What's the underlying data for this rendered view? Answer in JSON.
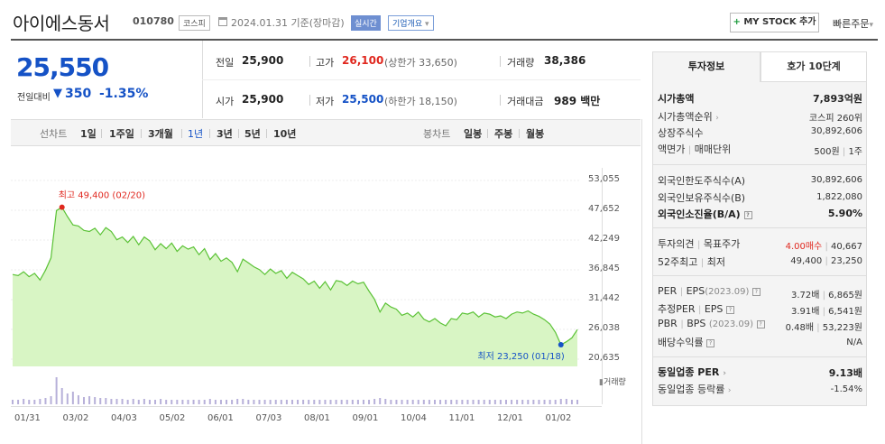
{
  "header": {
    "stock_name": "아이에스동서",
    "stock_code": "010780",
    "market": "코스피",
    "date_text": "2024.01.31 기준(장마감)",
    "realtime": "실시간",
    "company_overview": "기업개요",
    "my_stock_label": "MY STOCK 추가",
    "quick_order": "빠른주문"
  },
  "price": {
    "current": "25,550",
    "change_label": "전일대비",
    "change_value": "350",
    "change_rate": "-1.35%"
  },
  "info": {
    "prev_label": "전일",
    "prev_value": "25,900",
    "high_label": "고가",
    "high_value": "26,100",
    "high_sub": "(상한가 33,650)",
    "volume_label": "거래량",
    "volume_value": "38,386",
    "open_label": "시가",
    "open_value": "25,900",
    "low_label": "저가",
    "low_value": "25,500",
    "low_sub": "(하한가 18,150)",
    "amount_label": "거래대금",
    "amount_value": "989 백만"
  },
  "period_bar": {
    "line_label": "선차트",
    "periods": [
      "1일",
      "1주일",
      "3개월",
      "1년",
      "3년",
      "5년",
      "10년"
    ],
    "active_period": "1년",
    "candle_label": "봉차트",
    "candles": [
      "일봉",
      "주봉",
      "월봉"
    ]
  },
  "chart_data": {
    "type": "area",
    "y_ticks": [
      "53,055",
      "47,652",
      "42,249",
      "36,845",
      "31,442",
      "26,038",
      "20,635"
    ],
    "ylim": [
      20635,
      53055
    ],
    "x_labels": [
      "01/31",
      "03/02",
      "04/03",
      "05/02",
      "06/01",
      "07/03",
      "08/01",
      "09/01",
      "10/04",
      "11/01",
      "12/01",
      "01/02"
    ],
    "high_annotation": "최고 49,400 (02/20)",
    "low_annotation": "최저 23,250 (01/18)",
    "volume_label": "거래량",
    "line_color": "#5bc236",
    "fill_color": "#d8f5c4",
    "series": [
      {
        "values": [
          36000,
          35800,
          36500,
          35600,
          36200,
          35000,
          36800,
          39000,
          47600,
          48200,
          46500,
          45000,
          44800,
          44000,
          43800,
          44400,
          43200,
          44500,
          43800,
          42300,
          42800,
          41800,
          42900,
          41400,
          42800,
          42100,
          40500,
          41600,
          40700,
          41700,
          40200,
          41200,
          40600,
          41000,
          39600,
          40700,
          38700,
          39800,
          38400,
          39000,
          38200,
          36500,
          38800,
          38100,
          37400,
          36900,
          36000,
          37000,
          36200,
          36700,
          35300,
          36400,
          35800,
          35200,
          34200,
          34800,
          33500,
          34700,
          33200,
          34900,
          34700,
          34000,
          34800,
          34300,
          34600,
          33000,
          31500,
          29200,
          30800,
          30100,
          29700,
          28600,
          29000,
          28300,
          29200,
          27900,
          27400,
          28000,
          27200,
          26700,
          28000,
          27800,
          29000,
          28800,
          29200,
          28300,
          29000,
          28800,
          28300,
          28500,
          28000,
          28800,
          29200,
          29000,
          29400,
          28800,
          28400,
          27800,
          27000,
          25500,
          23250,
          23800,
          24500,
          26000
        ]
      }
    ],
    "volume": [
      5,
      5,
      6,
      5,
      5,
      6,
      7,
      9,
      30,
      18,
      12,
      14,
      10,
      8,
      9,
      8,
      7,
      7,
      6,
      6,
      6,
      5,
      6,
      5,
      6,
      5,
      5,
      6,
      5,
      5,
      5,
      5,
      5,
      5,
      5,
      5,
      6,
      5,
      5,
      5,
      5,
      6,
      6,
      5,
      5,
      5,
      5,
      5,
      5,
      5,
      5,
      5,
      5,
      5,
      5,
      5,
      5,
      5,
      5,
      5,
      5,
      5,
      5,
      5,
      5,
      5,
      6,
      7,
      6,
      5,
      5,
      5,
      5,
      5,
      5,
      5,
      5,
      5,
      5,
      5,
      5,
      5,
      5,
      5,
      5,
      5,
      5,
      5,
      5,
      5,
      5,
      5,
      5,
      5,
      5,
      5,
      5,
      5,
      5,
      5,
      6,
      6,
      5,
      5
    ]
  },
  "side": {
    "tab_active": "투자정보",
    "tab_other": "호가 10단계",
    "market_cap_label": "시가총액",
    "market_cap_value": "7,893억원",
    "market_cap_rank_label": "시가총액순위",
    "market_cap_rank_value": "코스피 260위",
    "listed_shares_label": "상장주식수",
    "listed_shares_value": "30,892,606",
    "par_label": "액면가",
    "par_label2": "매매단위",
    "par_value": "500원",
    "par_value2": "1주",
    "foreign_limit_label": "외국인한도주식수(A)",
    "foreign_limit_value": "30,892,606",
    "foreign_hold_label": "외국인보유주식수(B)",
    "foreign_hold_value": "1,822,080",
    "foreign_ratio_label": "외국인소진율(B/A)",
    "foreign_ratio_value": "5.90%",
    "opinion_label": "투자의견",
    "opinion_label2": "목표주가",
    "opinion_value": "4.00매수",
    "target_value": "40,667",
    "week52_label": "52주최고",
    "week52_label2": "최저",
    "week52_high": "49,400",
    "week52_low": "23,250",
    "per_label": "PER",
    "per_label2": "EPS",
    "per_date": "(2023.09)",
    "per_value": "3.72배",
    "eps_value": "6,865원",
    "est_per_label": "추정PER",
    "est_eps_label": "EPS",
    "est_per_value": "3.91배",
    "est_eps_value": "6,541원",
    "pbr_label": "PBR",
    "bps_label": "BPS",
    "pbr_date": "(2023.09)",
    "pbr_value": "0.48배",
    "bps_value": "53,223원",
    "dividend_label": "배당수익률",
    "dividend_value": "N/A",
    "industry_per_label": "동일업종 PER",
    "industry_per_value": "9.13배",
    "industry_rate_label": "동일업종 등락률",
    "industry_rate_value": "-1.54%"
  }
}
